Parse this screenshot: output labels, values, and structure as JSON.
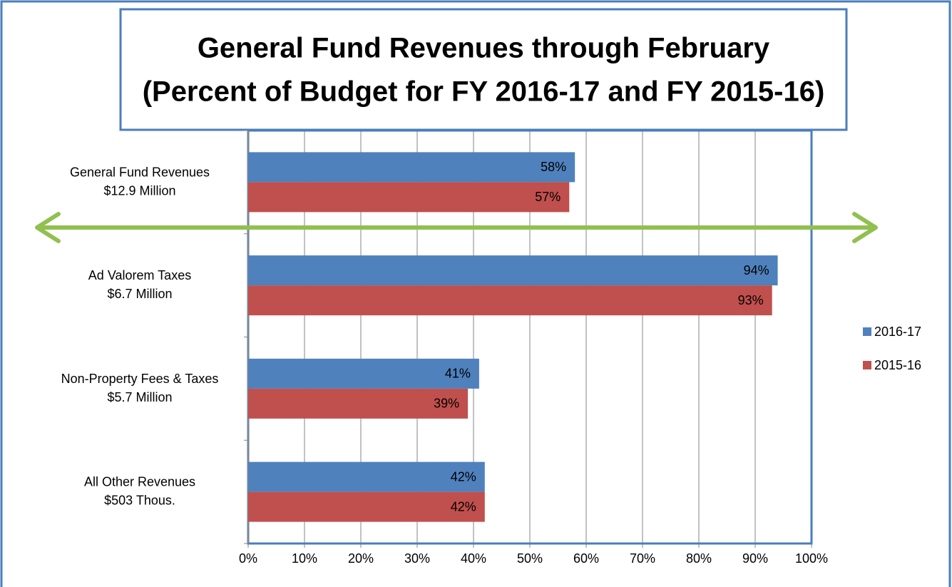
{
  "chart_data": {
    "type": "bar",
    "orientation": "horizontal",
    "title": "General Fund Revenues through February",
    "subtitle": "(Percent of Budget for FY 2016-17 and FY 2015-16)",
    "categories": [
      [
        "General Fund Revenues",
        "$12.9 Million"
      ],
      [
        "Ad Valorem Taxes",
        "$6.7 Million"
      ],
      [
        "Non-Property Fees & Taxes",
        "$5.7 Million"
      ],
      [
        "All Other Revenues",
        "$503 Thous."
      ]
    ],
    "series": [
      {
        "name": "2016-17",
        "color": "#4f81bd",
        "values": [
          58,
          94,
          41,
          42
        ],
        "value_labels": [
          "58%",
          "94%",
          "41%",
          "42%"
        ]
      },
      {
        "name": "2015-16",
        "color": "#c0504d",
        "values": [
          57,
          93,
          39,
          42
        ],
        "value_labels": [
          "57%",
          "93%",
          "39%",
          "42%"
        ]
      }
    ],
    "xlim": [
      0,
      100
    ],
    "xticks": [
      {
        "value": 0,
        "label": "0%"
      },
      {
        "value": 10,
        "label": "10%"
      },
      {
        "value": 20,
        "label": "20%"
      },
      {
        "value": 30,
        "label": "30%"
      },
      {
        "value": 40,
        "label": "40%"
      },
      {
        "value": 50,
        "label": "50%"
      },
      {
        "value": 60,
        "label": "60%"
      },
      {
        "value": 70,
        "label": "70%"
      },
      {
        "value": 80,
        "label": "80%"
      },
      {
        "value": 90,
        "label": "90%"
      },
      {
        "value": 100,
        "label": "100%"
      }
    ],
    "grid": true,
    "legend": "right"
  }
}
